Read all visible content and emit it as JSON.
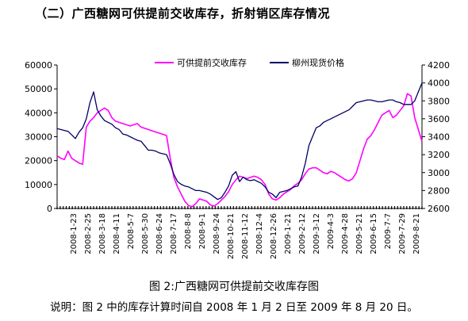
{
  "heading": "（二）广西糖网可供提前交收库存，折射销区库存情况",
  "caption": "图 2:广西糖网可供提前交收库存图",
  "note": "说明：图 2 中的库存计算时间自 2008 年 1 月 2 日至 2009 年 8 月 20 日。",
  "chart_data": {
    "type": "line",
    "title": "",
    "legend_position": "top",
    "grid": false,
    "y_left": {
      "min": 0,
      "max": 60000,
      "ticks": [
        "0",
        "10000",
        "20000",
        "30000",
        "40000",
        "50000",
        "60000"
      ]
    },
    "y_right": {
      "min": 2600,
      "max": 4200,
      "ticks": [
        "2600",
        "2800",
        "3000",
        "3200",
        "3400",
        "3600",
        "3800",
        "4000",
        "4200"
      ]
    },
    "x_range": [
      0,
      100
    ],
    "x_tick_labels": [
      "2008-1-23",
      "2008-2-25",
      "2008-3-18",
      "2008-4-11",
      "2008-5-7",
      "2008-5-30",
      "2008-6-24",
      "2008-7-17",
      "2008-8-8",
      "2008-9-1",
      "2008-9-24",
      "2008-10-21",
      "2008-11-12",
      "2008-12-4",
      "2008-12-26",
      "2009-1-21",
      "2009-2-12",
      "2009-3-12",
      "2009-4-3",
      "2009-4-28",
      "2009-5-21",
      "2009-6-15",
      "2009-7-7",
      "2009-7-29",
      "2009-8-21"
    ],
    "series": [
      {
        "name": "可供提前交收库存",
        "axis": "left",
        "color": "#ff00ff",
        "x": [
          0,
          1,
          2,
          3,
          4,
          5,
          6,
          7,
          8,
          9,
          10,
          11,
          12,
          13,
          14,
          15,
          16,
          17,
          18,
          19,
          20,
          21,
          22,
          23,
          24,
          25,
          26,
          27,
          28,
          29,
          30,
          31,
          32,
          33,
          34,
          35,
          36,
          37,
          38,
          39,
          40,
          41,
          42,
          43,
          44,
          45,
          46,
          47,
          48,
          49,
          50,
          51,
          52,
          53,
          54,
          55,
          56,
          57,
          58,
          59,
          60,
          61,
          62,
          63,
          64,
          65,
          66,
          67,
          68,
          69,
          70,
          71,
          72,
          73,
          74,
          75,
          76,
          77,
          78,
          79,
          80,
          81,
          82,
          83,
          84,
          85,
          86,
          87,
          88,
          89,
          90,
          91,
          92,
          93,
          94,
          95,
          96,
          97,
          98,
          99,
          100
        ],
        "values": [
          22000,
          21000,
          20500,
          24000,
          21000,
          20000,
          19000,
          18500,
          34000,
          36500,
          38000,
          40000,
          41000,
          42000,
          41000,
          38000,
          36500,
          36000,
          35500,
          35000,
          34500,
          35000,
          35500,
          34000,
          33500,
          33000,
          32500,
          32000,
          31500,
          31000,
          30500,
          21000,
          13000,
          9000,
          6000,
          3000,
          1200,
          800,
          2000,
          4000,
          3500,
          3000,
          1500,
          1000,
          2000,
          3500,
          5000,
          7000,
          10000,
          12000,
          13500,
          13000,
          12500,
          13000,
          13500,
          13000,
          12000,
          10000,
          6000,
          4000,
          3500,
          4500,
          6000,
          7000,
          8000,
          9500,
          10500,
          12000,
          14500,
          16500,
          17000,
          17000,
          16000,
          15000,
          14500,
          15500,
          15000,
          14000,
          13000,
          12000,
          11500,
          12500,
          15000,
          20000,
          25000,
          29000,
          30500,
          33000,
          36000,
          39000,
          40000,
          41000,
          38000,
          39000,
          41000,
          43000,
          48000,
          47000,
          38000,
          33000,
          28000
        ]
      },
      {
        "name": "柳州现货价格",
        "axis": "right",
        "color": "#000066",
        "x": [
          0,
          1,
          2,
          3,
          4,
          5,
          6,
          7,
          8,
          9,
          10,
          11,
          12,
          13,
          14,
          15,
          16,
          17,
          18,
          19,
          20,
          21,
          22,
          23,
          24,
          25,
          26,
          27,
          28,
          29,
          30,
          31,
          32,
          33,
          34,
          35,
          36,
          37,
          38,
          39,
          40,
          41,
          42,
          43,
          44,
          45,
          46,
          47,
          48,
          49,
          50,
          51,
          52,
          53,
          54,
          55,
          56,
          57,
          58,
          59,
          60,
          61,
          62,
          63,
          64,
          65,
          66,
          67,
          68,
          69,
          70,
          71,
          72,
          73,
          74,
          75,
          76,
          77,
          78,
          79,
          80,
          81,
          82,
          83,
          84,
          85,
          86,
          87,
          88,
          89,
          90,
          91,
          92,
          93,
          94,
          95,
          96,
          97,
          98,
          99,
          100
        ],
        "values": [
          3490,
          3480,
          3470,
          3460,
          3420,
          3380,
          3450,
          3500,
          3600,
          3780,
          3900,
          3700,
          3630,
          3580,
          3560,
          3540,
          3500,
          3480,
          3430,
          3420,
          3400,
          3380,
          3360,
          3350,
          3300,
          3250,
          3250,
          3240,
          3220,
          3210,
          3200,
          3100,
          2980,
          2900,
          2870,
          2850,
          2840,
          2820,
          2800,
          2800,
          2790,
          2780,
          2760,
          2730,
          2700,
          2720,
          2780,
          2850,
          2970,
          3010,
          2900,
          2950,
          2920,
          2910,
          2920,
          2900,
          2880,
          2840,
          2780,
          2760,
          2720,
          2780,
          2790,
          2800,
          2820,
          2840,
          2850,
          2950,
          3100,
          3300,
          3400,
          3500,
          3520,
          3560,
          3580,
          3600,
          3620,
          3640,
          3660,
          3680,
          3700,
          3740,
          3780,
          3790,
          3800,
          3810,
          3810,
          3800,
          3790,
          3790,
          3800,
          3810,
          3810,
          3790,
          3780,
          3760,
          3760,
          3760,
          3800,
          3900,
          4000
        ]
      }
    ]
  }
}
